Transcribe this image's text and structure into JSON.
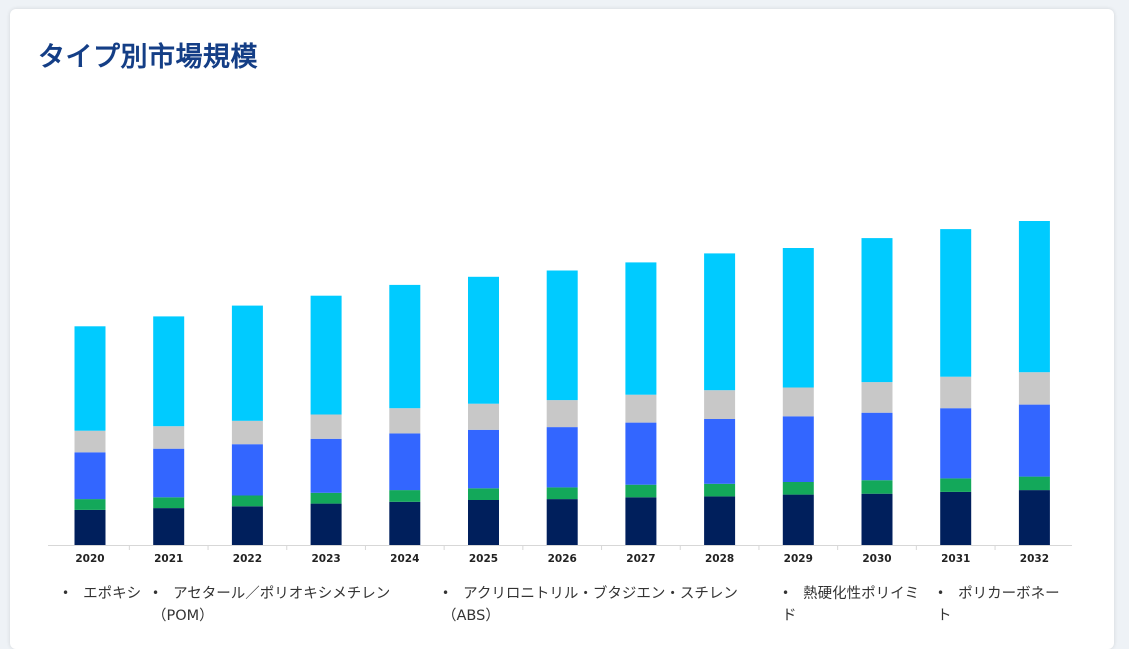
{
  "page": {
    "title": "タイプ別市場規模"
  },
  "chart_data": {
    "type": "bar",
    "stacked": true,
    "categories": [
      "2020",
      "2021",
      "2022",
      "2023",
      "2024",
      "2025",
      "2026",
      "2027",
      "2028",
      "2029",
      "2030",
      "2031",
      "2032"
    ],
    "series": [
      {
        "name": "エポキシ",
        "color": "#001f5c",
        "values": [
          39,
          41,
          43,
          46,
          48,
          50,
          51,
          53,
          54,
          56,
          57,
          59,
          61
        ]
      },
      {
        "name": "アセタール／ポリオキシメチレン（POM）",
        "color": "#13a85a",
        "values": [
          12,
          12,
          12,
          12,
          13,
          13,
          13,
          14,
          14,
          14,
          15,
          15,
          15
        ]
      },
      {
        "name": "アクリロニトリル・ブタジエン・スチレン（ABS）",
        "color": "#3366ff",
        "values": [
          52,
          54,
          57,
          60,
          63,
          65,
          67,
          69,
          72,
          73,
          75,
          78,
          80
        ]
      },
      {
        "name": "熱硬化性ポリイミド",
        "color": "#c8c8c8",
        "values": [
          24,
          25,
          26,
          27,
          28,
          29,
          30,
          31,
          32,
          32,
          34,
          35,
          36
        ]
      },
      {
        "name": "ポリカーボネート",
        "color": "#00cbff",
        "values": [
          116,
          122,
          128,
          132,
          137,
          141,
          144,
          147,
          152,
          155,
          160,
          164,
          168
        ]
      }
    ],
    "ylim": [
      0,
      400
    ],
    "grid": false,
    "legend_position": "bottom",
    "legend_bullet": "•"
  }
}
